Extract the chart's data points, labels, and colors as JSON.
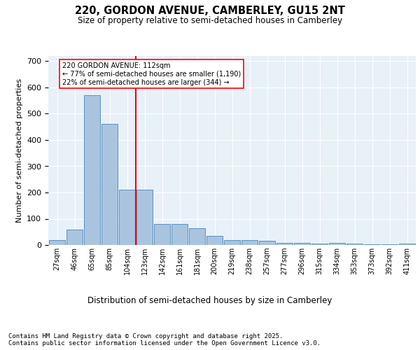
{
  "title1": "220, GORDON AVENUE, CAMBERLEY, GU15 2NT",
  "title2": "Size of property relative to semi-detached houses in Camberley",
  "xlabel": "Distribution of semi-detached houses by size in Camberley",
  "ylabel": "Number of semi-detached properties",
  "categories": [
    "27sqm",
    "46sqm",
    "65sqm",
    "85sqm",
    "104sqm",
    "123sqm",
    "142sqm",
    "161sqm",
    "181sqm",
    "200sqm",
    "219sqm",
    "238sqm",
    "257sqm",
    "277sqm",
    "296sqm",
    "315sqm",
    "334sqm",
    "353sqm",
    "373sqm",
    "392sqm",
    "411sqm"
  ],
  "values": [
    20,
    60,
    570,
    460,
    210,
    210,
    80,
    80,
    65,
    35,
    20,
    20,
    15,
    8,
    8,
    5,
    8,
    5,
    3,
    2,
    5
  ],
  "bar_color": "#aac4e0",
  "bar_edge_color": "#5a8fc0",
  "background_color": "#e8f0f8",
  "red_line_x": 4.5,
  "annotation_title": "220 GORDON AVENUE: 112sqm",
  "annotation_line1": "← 77% of semi-detached houses are smaller (1,190)",
  "annotation_line2": "22% of semi-detached houses are larger (344) →",
  "footer1": "Contains HM Land Registry data © Crown copyright and database right 2025.",
  "footer2": "Contains public sector information licensed under the Open Government Licence v3.0.",
  "ylim": [
    0,
    720
  ],
  "yticks": [
    0,
    100,
    200,
    300,
    400,
    500,
    600,
    700
  ]
}
